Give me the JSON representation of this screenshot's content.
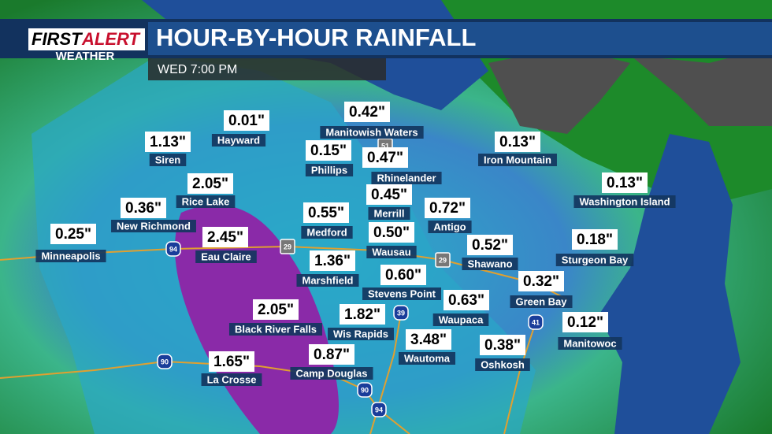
{
  "header": {
    "logo_first": "FIRST",
    "logo_alert": "ALERT",
    "logo_weather": "WEATHER",
    "title": "HOUR-BY-HOUR RAINFALL",
    "time": "WED 7:00 PM"
  },
  "cities": [
    {
      "name": "Hayward",
      "amount": "0.01\""
    },
    {
      "name": "Siren",
      "amount": "1.13\""
    },
    {
      "name": "Manitowish Waters",
      "amount": "0.42\""
    },
    {
      "name": "Phillips",
      "amount": "0.15\""
    },
    {
      "name": "Rhinelander",
      "amount": "0.47\""
    },
    {
      "name": "Iron Mountain",
      "amount": "0.13\""
    },
    {
      "name": "Rice Lake",
      "amount": "2.05\""
    },
    {
      "name": "Merrill",
      "amount": "0.45\""
    },
    {
      "name": "Washington Island",
      "amount": "0.13\""
    },
    {
      "name": "New Richmond",
      "amount": "0.36\""
    },
    {
      "name": "Medford",
      "amount": "0.55\""
    },
    {
      "name": "Antigo",
      "amount": "0.72\""
    },
    {
      "name": "Minneapolis",
      "amount": "0.25\""
    },
    {
      "name": "Eau Claire",
      "amount": "2.45\""
    },
    {
      "name": "Wausau",
      "amount": "0.50\""
    },
    {
      "name": "Shawano",
      "amount": "0.52\""
    },
    {
      "name": "Sturgeon Bay",
      "amount": "0.18\""
    },
    {
      "name": "Marshfield",
      "amount": "1.36\""
    },
    {
      "name": "Stevens Point",
      "amount": "0.60\""
    },
    {
      "name": "Green Bay",
      "amount": "0.32\""
    },
    {
      "name": "Waupaca",
      "amount": "0.63\""
    },
    {
      "name": "Black River Falls",
      "amount": "2.05\""
    },
    {
      "name": "Wis Rapids",
      "amount": "1.82\""
    },
    {
      "name": "Manitowoc",
      "amount": "0.12\""
    },
    {
      "name": "Camp Douglas",
      "amount": "0.87\""
    },
    {
      "name": "Wautoma",
      "amount": "3.48\""
    },
    {
      "name": "Oshkosh",
      "amount": "0.38\""
    },
    {
      "name": "La Crosse",
      "amount": "1.65\""
    }
  ],
  "shields": [
    "94",
    "29",
    "51",
    "29",
    "39",
    "41",
    "90",
    "90",
    "94"
  ]
}
